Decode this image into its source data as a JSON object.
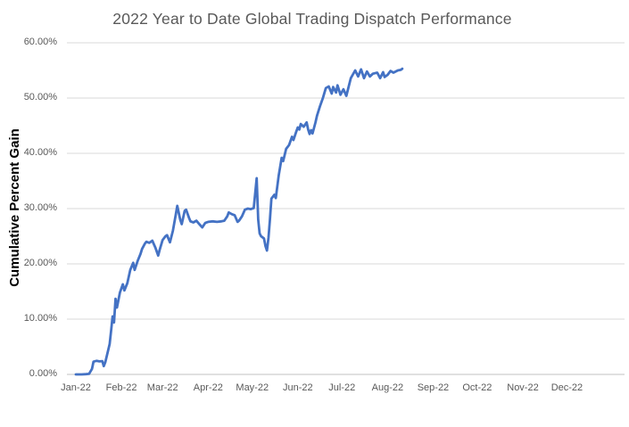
{
  "chart_data": {
    "type": "line",
    "title": "2022 Year to Date Global Trading Dispatch Performance",
    "ylabel": "Cumulative Percent Gain",
    "xlabel": "",
    "categories": [
      "Jan-22",
      "Feb-22",
      "Mar-22",
      "Apr-22",
      "May-22",
      "Jun-22",
      "Jul-22",
      "Aug-22",
      "Sep-22",
      "Oct-22",
      "Nov-22",
      "Dec-22"
    ],
    "yticks": [
      "0.00%",
      "10.00%",
      "20.00%",
      "30.00%",
      "40.00%",
      "50.00%",
      "60.00%"
    ],
    "ylim": [
      0,
      60
    ],
    "xlim_months": [
      "Jan-22",
      "Dec-22"
    ],
    "grid": "horizontal",
    "legend": "none",
    "line_color": "#4472C4",
    "grid_color": "#d9d9d9",
    "axis_color": "#c0c0c0",
    "text_color": "#595959",
    "series": [
      {
        "name": "Cumulative Percent Gain",
        "points": [
          [
            "2022-01-01",
            0.0
          ],
          [
            "2022-01-05",
            0.0
          ],
          [
            "2022-01-08",
            0.05
          ],
          [
            "2022-01-10",
            0.1
          ],
          [
            "2022-01-12",
            1.0
          ],
          [
            "2022-01-13",
            2.3
          ],
          [
            "2022-01-15",
            2.45
          ],
          [
            "2022-01-17",
            2.35
          ],
          [
            "2022-01-19",
            2.4
          ],
          [
            "2022-01-20",
            1.5
          ],
          [
            "2022-01-21",
            2.2
          ],
          [
            "2022-01-24",
            5.5
          ],
          [
            "2022-01-25",
            8.0
          ],
          [
            "2022-01-26",
            10.5
          ],
          [
            "2022-01-27",
            9.4
          ],
          [
            "2022-01-28",
            13.7
          ],
          [
            "2022-01-29",
            12.1
          ],
          [
            "2022-01-31",
            14.8
          ],
          [
            "2022-02-02",
            16.3
          ],
          [
            "2022-02-03",
            15.2
          ],
          [
            "2022-02-05",
            16.5
          ],
          [
            "2022-02-07",
            18.9
          ],
          [
            "2022-02-09",
            20.2
          ],
          [
            "2022-02-10",
            18.9
          ],
          [
            "2022-02-12",
            20.5
          ],
          [
            "2022-02-14",
            21.8
          ],
          [
            "2022-02-15",
            22.7
          ],
          [
            "2022-02-17",
            23.7
          ],
          [
            "2022-02-18",
            24.0
          ],
          [
            "2022-02-20",
            23.8
          ],
          [
            "2022-02-22",
            24.2
          ],
          [
            "2022-02-24",
            23.0
          ],
          [
            "2022-02-26",
            21.5
          ],
          [
            "2022-02-27",
            22.5
          ],
          [
            "2022-03-01",
            24.3
          ],
          [
            "2022-03-03",
            25.0
          ],
          [
            "2022-03-04",
            25.2
          ],
          [
            "2022-03-06",
            23.9
          ],
          [
            "2022-03-08",
            26.0
          ],
          [
            "2022-03-10",
            29.0
          ],
          [
            "2022-03-11",
            30.5
          ],
          [
            "2022-03-13",
            28.0
          ],
          [
            "2022-03-14",
            27.2
          ],
          [
            "2022-03-16",
            29.6
          ],
          [
            "2022-03-17",
            29.8
          ],
          [
            "2022-03-19",
            28.3
          ],
          [
            "2022-03-20",
            27.7
          ],
          [
            "2022-03-22",
            27.5
          ],
          [
            "2022-03-24",
            27.8
          ],
          [
            "2022-03-26",
            27.2
          ],
          [
            "2022-03-28",
            26.6
          ],
          [
            "2022-03-30",
            27.4
          ],
          [
            "2022-04-01",
            27.6
          ],
          [
            "2022-04-04",
            27.7
          ],
          [
            "2022-04-07",
            27.6
          ],
          [
            "2022-04-10",
            27.7
          ],
          [
            "2022-04-12",
            27.8
          ],
          [
            "2022-04-14",
            28.6
          ],
          [
            "2022-04-15",
            29.3
          ],
          [
            "2022-04-17",
            29.0
          ],
          [
            "2022-04-19",
            28.8
          ],
          [
            "2022-04-21",
            27.6
          ],
          [
            "2022-04-22",
            27.8
          ],
          [
            "2022-04-24",
            28.6
          ],
          [
            "2022-04-26",
            29.8
          ],
          [
            "2022-04-28",
            30.0
          ],
          [
            "2022-04-30",
            29.9
          ],
          [
            "2022-05-02",
            30.1
          ],
          [
            "2022-05-04",
            35.5
          ],
          [
            "2022-05-05",
            28.0
          ],
          [
            "2022-05-06",
            25.5
          ],
          [
            "2022-05-07",
            25.0
          ],
          [
            "2022-05-09",
            24.6
          ],
          [
            "2022-05-10",
            23.2
          ],
          [
            "2022-05-11",
            22.4
          ],
          [
            "2022-05-12",
            24.7
          ],
          [
            "2022-05-13",
            27.9
          ],
          [
            "2022-05-14",
            31.8
          ],
          [
            "2022-05-16",
            32.5
          ],
          [
            "2022-05-17",
            31.9
          ],
          [
            "2022-05-18",
            34.0
          ],
          [
            "2022-05-19",
            36.0
          ],
          [
            "2022-05-21",
            39.2
          ],
          [
            "2022-05-22",
            38.6
          ],
          [
            "2022-05-24",
            40.8
          ],
          [
            "2022-05-26",
            41.5
          ],
          [
            "2022-05-28",
            43.0
          ],
          [
            "2022-05-29",
            42.4
          ],
          [
            "2022-05-31",
            44.0
          ],
          [
            "2022-06-01",
            44.7
          ],
          [
            "2022-06-02",
            44.3
          ],
          [
            "2022-06-03",
            45.3
          ],
          [
            "2022-06-05",
            44.8
          ],
          [
            "2022-06-07",
            45.6
          ],
          [
            "2022-06-08",
            44.3
          ],
          [
            "2022-06-09",
            43.5
          ],
          [
            "2022-06-10",
            44.2
          ],
          [
            "2022-06-11",
            43.6
          ],
          [
            "2022-06-13",
            45.6
          ],
          [
            "2022-06-14",
            46.8
          ],
          [
            "2022-06-16",
            48.5
          ],
          [
            "2022-06-18",
            50.0
          ],
          [
            "2022-06-20",
            51.8
          ],
          [
            "2022-06-22",
            52.1
          ],
          [
            "2022-06-24",
            50.8
          ],
          [
            "2022-06-25",
            52.0
          ],
          [
            "2022-06-27",
            51.0
          ],
          [
            "2022-06-28",
            52.3
          ],
          [
            "2022-06-30",
            50.6
          ],
          [
            "2022-07-02",
            51.6
          ],
          [
            "2022-07-04",
            50.4
          ],
          [
            "2022-07-07",
            53.6
          ],
          [
            "2022-07-10",
            55.0
          ],
          [
            "2022-07-12",
            53.9
          ],
          [
            "2022-07-14",
            55.2
          ],
          [
            "2022-07-16",
            53.6
          ],
          [
            "2022-07-18",
            54.8
          ],
          [
            "2022-07-20",
            53.9
          ],
          [
            "2022-07-22",
            54.4
          ],
          [
            "2022-07-25",
            54.6
          ],
          [
            "2022-07-27",
            53.6
          ],
          [
            "2022-07-29",
            54.7
          ],
          [
            "2022-07-30",
            53.8
          ],
          [
            "2022-08-01",
            54.2
          ],
          [
            "2022-08-03",
            54.9
          ],
          [
            "2022-08-05",
            54.6
          ],
          [
            "2022-08-08",
            55.0
          ],
          [
            "2022-08-10",
            55.1
          ],
          [
            "2022-08-11",
            55.3
          ]
        ]
      }
    ]
  }
}
